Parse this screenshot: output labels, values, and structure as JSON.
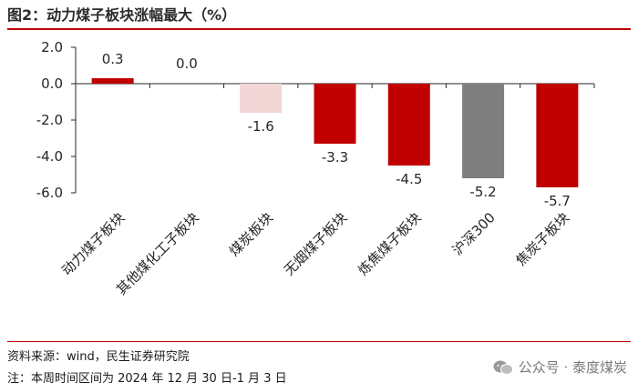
{
  "figure": {
    "title": "图2：动力煤子板块涨幅最大（%）",
    "source_note": "资料来源：wind，民生证券研究院",
    "period_note": "注：本周时间区间为 2024 年 12 月 30 日-1 月 3 日",
    "watermark": "公众号 · 泰度煤炭"
  },
  "colors": {
    "red": "#c00000",
    "light_pink": "#f2d6d6",
    "gray": "#7f7f7f",
    "accent_rule": "#c00000"
  },
  "chart_data": {
    "type": "bar",
    "title": "动力煤子板块涨幅最大（%）",
    "xlabel": "",
    "ylabel": "",
    "ylim": [
      -6.0,
      2.0
    ],
    "yticks": [
      2.0,
      0.0,
      -2.0,
      -4.0,
      -6.0
    ],
    "ytick_labels": [
      "2.0",
      "0.0",
      "-2.0",
      "-4.0",
      "-6.0"
    ],
    "categories": [
      "动力煤子板块",
      "其他煤化工子板块",
      "煤炭板块",
      "无烟煤子板块",
      "炼焦煤子板块",
      "沪深300",
      "焦炭子板块"
    ],
    "values": [
      0.3,
      0.0,
      -1.6,
      -3.3,
      -4.5,
      -5.2,
      -5.7
    ],
    "data_labels": [
      "0.3",
      "0.0",
      "-1.6",
      "-3.3",
      "-4.5",
      "-5.2",
      "-5.7"
    ],
    "bar_colors": [
      "red",
      "red",
      "light_pink",
      "red",
      "red",
      "gray",
      "red"
    ],
    "grid": false,
    "legend": "none"
  }
}
